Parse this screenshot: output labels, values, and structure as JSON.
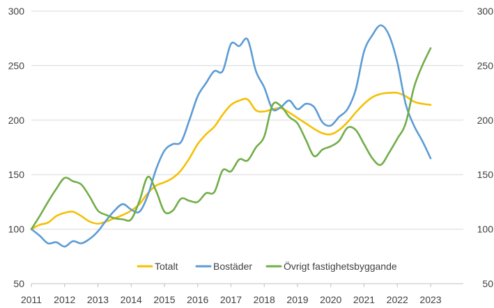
{
  "chart_data": {
    "type": "line",
    "title": "",
    "xlabel": "",
    "ylabel": "",
    "x_ticks": [
      "2011",
      "2012",
      "2013",
      "2014",
      "2015",
      "2016",
      "2017",
      "2018",
      "2019",
      "2020",
      "2021",
      "2022",
      "2023"
    ],
    "xlim": [
      2011,
      2023.5
    ],
    "ylim": [
      50,
      300
    ],
    "y_ticks": [
      50,
      100,
      150,
      200,
      250,
      300
    ],
    "y_ticks_right": [
      50,
      100,
      150,
      200,
      250,
      300
    ],
    "grid": "horizontal",
    "legend_position": "bottom-center",
    "series": [
      {
        "name": "Totalt",
        "color": "#f5c000",
        "x": [
          2011.0,
          2011.25,
          2011.5,
          2011.75,
          2012.0,
          2012.25,
          2012.5,
          2012.75,
          2013.0,
          2013.25,
          2013.5,
          2013.75,
          2014.0,
          2014.25,
          2014.5,
          2014.75,
          2015.0,
          2015.25,
          2015.5,
          2015.75,
          2016.0,
          2016.25,
          2016.5,
          2016.75,
          2017.0,
          2017.25,
          2017.5,
          2017.75,
          2018.0,
          2018.25,
          2018.5,
          2018.75,
          2019.0,
          2019.25,
          2019.5,
          2019.75,
          2020.0,
          2020.25,
          2020.5,
          2020.75,
          2021.0,
          2021.25,
          2021.5,
          2021.75,
          2022.0,
          2022.25,
          2022.5,
          2022.75,
          2023.0
        ],
        "y": [
          100,
          104,
          106,
          112,
          115,
          116,
          112,
          107,
          105,
          107,
          110,
          113,
          117,
          123,
          133,
          140,
          143,
          147,
          154,
          165,
          178,
          187,
          194,
          205,
          214,
          218,
          219,
          209,
          208,
          210,
          211,
          207,
          202,
          197,
          192,
          188,
          187,
          191,
          198,
          207,
          215,
          221,
          224,
          225,
          225,
          222,
          217,
          215,
          214
        ]
      },
      {
        "name": "Bostäder",
        "color": "#5b9bd5",
        "x": [
          2011.0,
          2011.25,
          2011.5,
          2011.75,
          2012.0,
          2012.25,
          2012.5,
          2012.75,
          2013.0,
          2013.25,
          2013.5,
          2013.75,
          2014.0,
          2014.25,
          2014.5,
          2014.75,
          2015.0,
          2015.25,
          2015.5,
          2015.75,
          2016.0,
          2016.25,
          2016.5,
          2016.75,
          2017.0,
          2017.25,
          2017.5,
          2017.75,
          2018.0,
          2018.25,
          2018.5,
          2018.75,
          2019.0,
          2019.25,
          2019.5,
          2019.75,
          2020.0,
          2020.25,
          2020.5,
          2020.75,
          2021.0,
          2021.25,
          2021.5,
          2021.75,
          2022.0,
          2022.25,
          2022.5,
          2022.75,
          2023.0
        ],
        "y": [
          100,
          94,
          87,
          88,
          84,
          89,
          87,
          91,
          98,
          108,
          117,
          123,
          118,
          116,
          131,
          155,
          172,
          178,
          180,
          200,
          222,
          234,
          245,
          245,
          270,
          268,
          274,
          245,
          230,
          210,
          212,
          218,
          210,
          215,
          212,
          198,
          195,
          203,
          210,
          228,
          263,
          278,
          287,
          278,
          253,
          215,
          195,
          181,
          165
        ]
      },
      {
        "name": "Övrigt fastighetsbyggande",
        "color": "#70ad47",
        "x": [
          2011.0,
          2011.25,
          2011.5,
          2011.75,
          2012.0,
          2012.25,
          2012.5,
          2012.75,
          2013.0,
          2013.25,
          2013.5,
          2013.75,
          2014.0,
          2014.25,
          2014.5,
          2014.75,
          2015.0,
          2015.25,
          2015.5,
          2015.75,
          2016.0,
          2016.25,
          2016.5,
          2016.75,
          2017.0,
          2017.25,
          2017.5,
          2017.75,
          2018.0,
          2018.25,
          2018.5,
          2018.75,
          2019.0,
          2019.25,
          2019.5,
          2019.75,
          2020.0,
          2020.25,
          2020.5,
          2020.75,
          2021.0,
          2021.25,
          2021.5,
          2021.75,
          2022.0,
          2022.25,
          2022.5,
          2022.75,
          2023.0
        ],
        "y": [
          100,
          112,
          125,
          137,
          147,
          144,
          141,
          130,
          117,
          113,
          110,
          109,
          109,
          126,
          148,
          135,
          116,
          117,
          128,
          126,
          125,
          133,
          134,
          154,
          153,
          164,
          163,
          175,
          185,
          214,
          213,
          203,
          197,
          182,
          167,
          173,
          176,
          181,
          193,
          191,
          178,
          165,
          159,
          170,
          183,
          197,
          230,
          250,
          266
        ]
      }
    ]
  }
}
